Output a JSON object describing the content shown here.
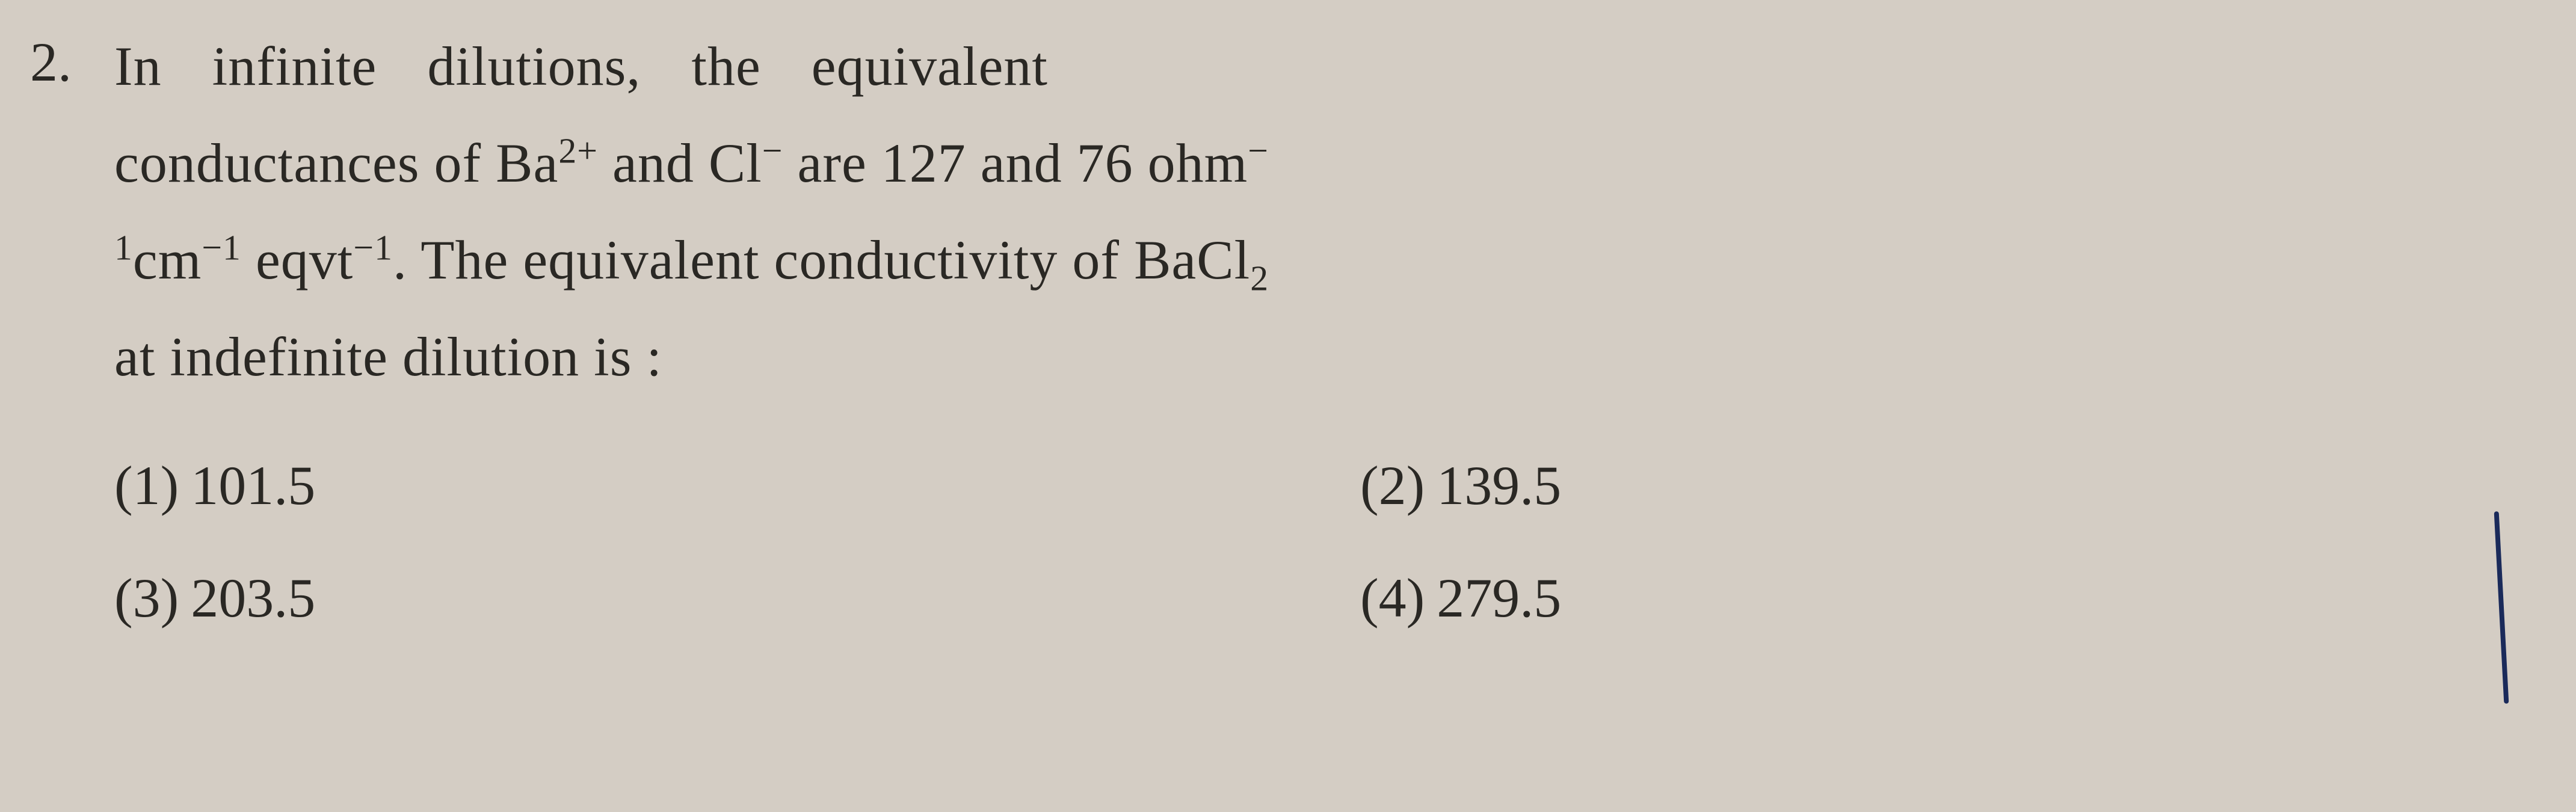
{
  "question": {
    "number": "2.",
    "line1": "In infinite dilutions, the equivalent",
    "line2_pre": "conductances of Ba",
    "line2_sup1": "2+",
    "line2_mid": " and Cl",
    "line2_sup2": "−",
    "line2_post": " are 127 and 76 ohm",
    "line2_sup3": "−",
    "line3_sup1": "1",
    "line3_pre": "cm",
    "line3_sup2": "−1",
    "line3_mid": " eqvt",
    "line3_sup3": "−1",
    "line3_post": ". The equivalent conductivity of BaCl",
    "line3_sub": "2",
    "line4": "at indefinite dilution is :"
  },
  "options": {
    "opt1_label": "(1)",
    "opt1_value": "101.5",
    "opt2_label": "(2)",
    "opt2_value": "139.5",
    "opt3_label": "(3)",
    "opt3_value": "203.5",
    "opt4_label": "(4)",
    "opt4_value": "279.5"
  },
  "style": {
    "background_color": "#d4cdc4",
    "text_color": "#2a2824",
    "pen_mark_color": "#1a2a5a"
  }
}
